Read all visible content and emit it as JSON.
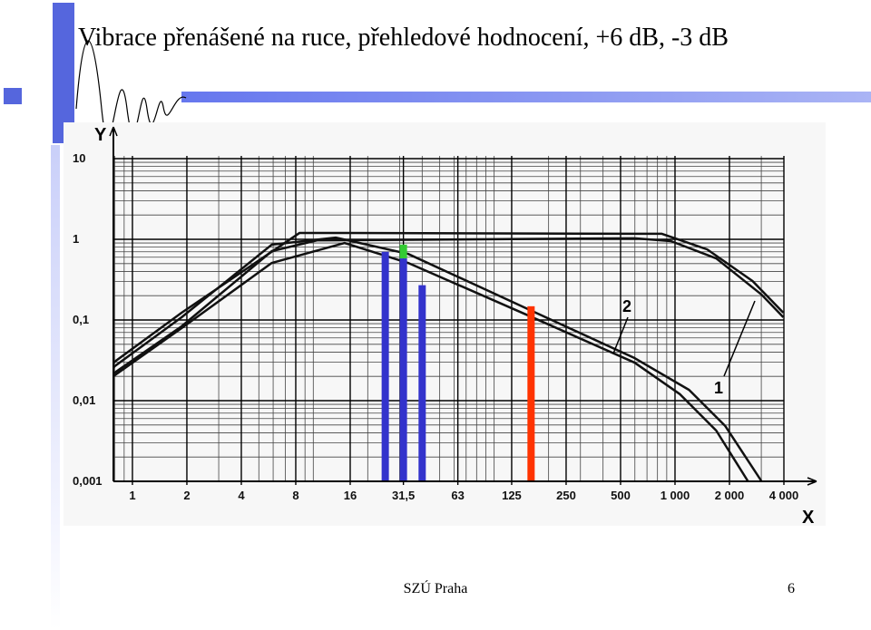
{
  "slide": {
    "title": "Vibrace přenášené na ruce, přehledové hodnocení, +6 dB, -3 dB",
    "footer": "SZÚ Praha",
    "page_number": "6"
  },
  "chart_data": {
    "type": "line",
    "x_label": "X",
    "y_label": "Y",
    "log_x": true,
    "log_y": true,
    "grid": true,
    "xlim": [
      0.785,
      4000
    ],
    "ylim": [
      0.001,
      10
    ],
    "xticks": [
      1,
      2,
      4,
      8,
      16,
      {
        "value": 31.5,
        "label": "31,5"
      },
      63,
      125,
      250,
      500,
      {
        "value": 1000,
        "label": "1 000"
      },
      {
        "value": 2000,
        "label": "2 000"
      },
      {
        "value": 4000,
        "label": "4 000"
      }
    ],
    "yticks": [
      {
        "value": 0.001,
        "label": "0,001"
      },
      {
        "value": 0.01,
        "label": "0,01"
      },
      {
        "value": 0.1,
        "label": "0,1"
      },
      1,
      10
    ],
    "annotations": [
      "2",
      "1"
    ],
    "series": [
      {
        "type": "line",
        "color": "#111111",
        "x": [
          0.785,
          1.87,
          8.4,
          10.5,
          598,
          846,
          1506,
          2683,
          3972
        ],
        "values": [
          0.0296,
          0.123,
          1.2,
          1.2,
          1.17,
          1.17,
          0.75,
          0.304,
          0.123
        ]
      },
      {
        "type": "line",
        "color": "#111111",
        "x": [
          0.785,
          1.87,
          5.9,
          10.5,
          598,
          949,
          1690,
          3011,
          3972
        ],
        "values": [
          0.0217,
          0.0834,
          0.714,
          0.97,
          1.03,
          0.95,
          0.58,
          0.206,
          0.108
        ]
      },
      {
        "type": "line",
        "color": "#111111",
        "x": [
          0.785,
          1.87,
          5.9,
          13.3,
          33.4,
          150,
          598,
          1196,
          1897,
          3011
        ],
        "values": [
          0.026,
          0.108,
          0.86,
          1.05,
          0.66,
          0.14,
          0.0337,
          0.0136,
          0.00484,
          0.001
        ]
      },
      {
        "type": "line",
        "color": "#111111",
        "x": [
          0.785,
          1.87,
          5.9,
          14.9,
          33.4,
          150,
          598,
          1066,
          1690,
          2533
        ],
        "values": [
          0.0201,
          0.0792,
          0.51,
          0.9,
          0.51,
          0.117,
          0.0296,
          0.012,
          0.00426,
          0.001
        ]
      },
      {
        "type": "bar",
        "x": [
          25,
          31.5,
          40,
          160
        ],
        "values": [
          0.7,
          0.58,
          0.27,
          0.148
        ],
        "colors": [
          "#3333cc",
          "#3333cc",
          "#3333cc",
          "#ff3300"
        ]
      },
      {
        "type": "bar",
        "x": [
          31.5
        ],
        "values": [
          0.86
        ],
        "base": [
          0.58
        ],
        "colors": [
          "#33cc33"
        ]
      }
    ]
  }
}
